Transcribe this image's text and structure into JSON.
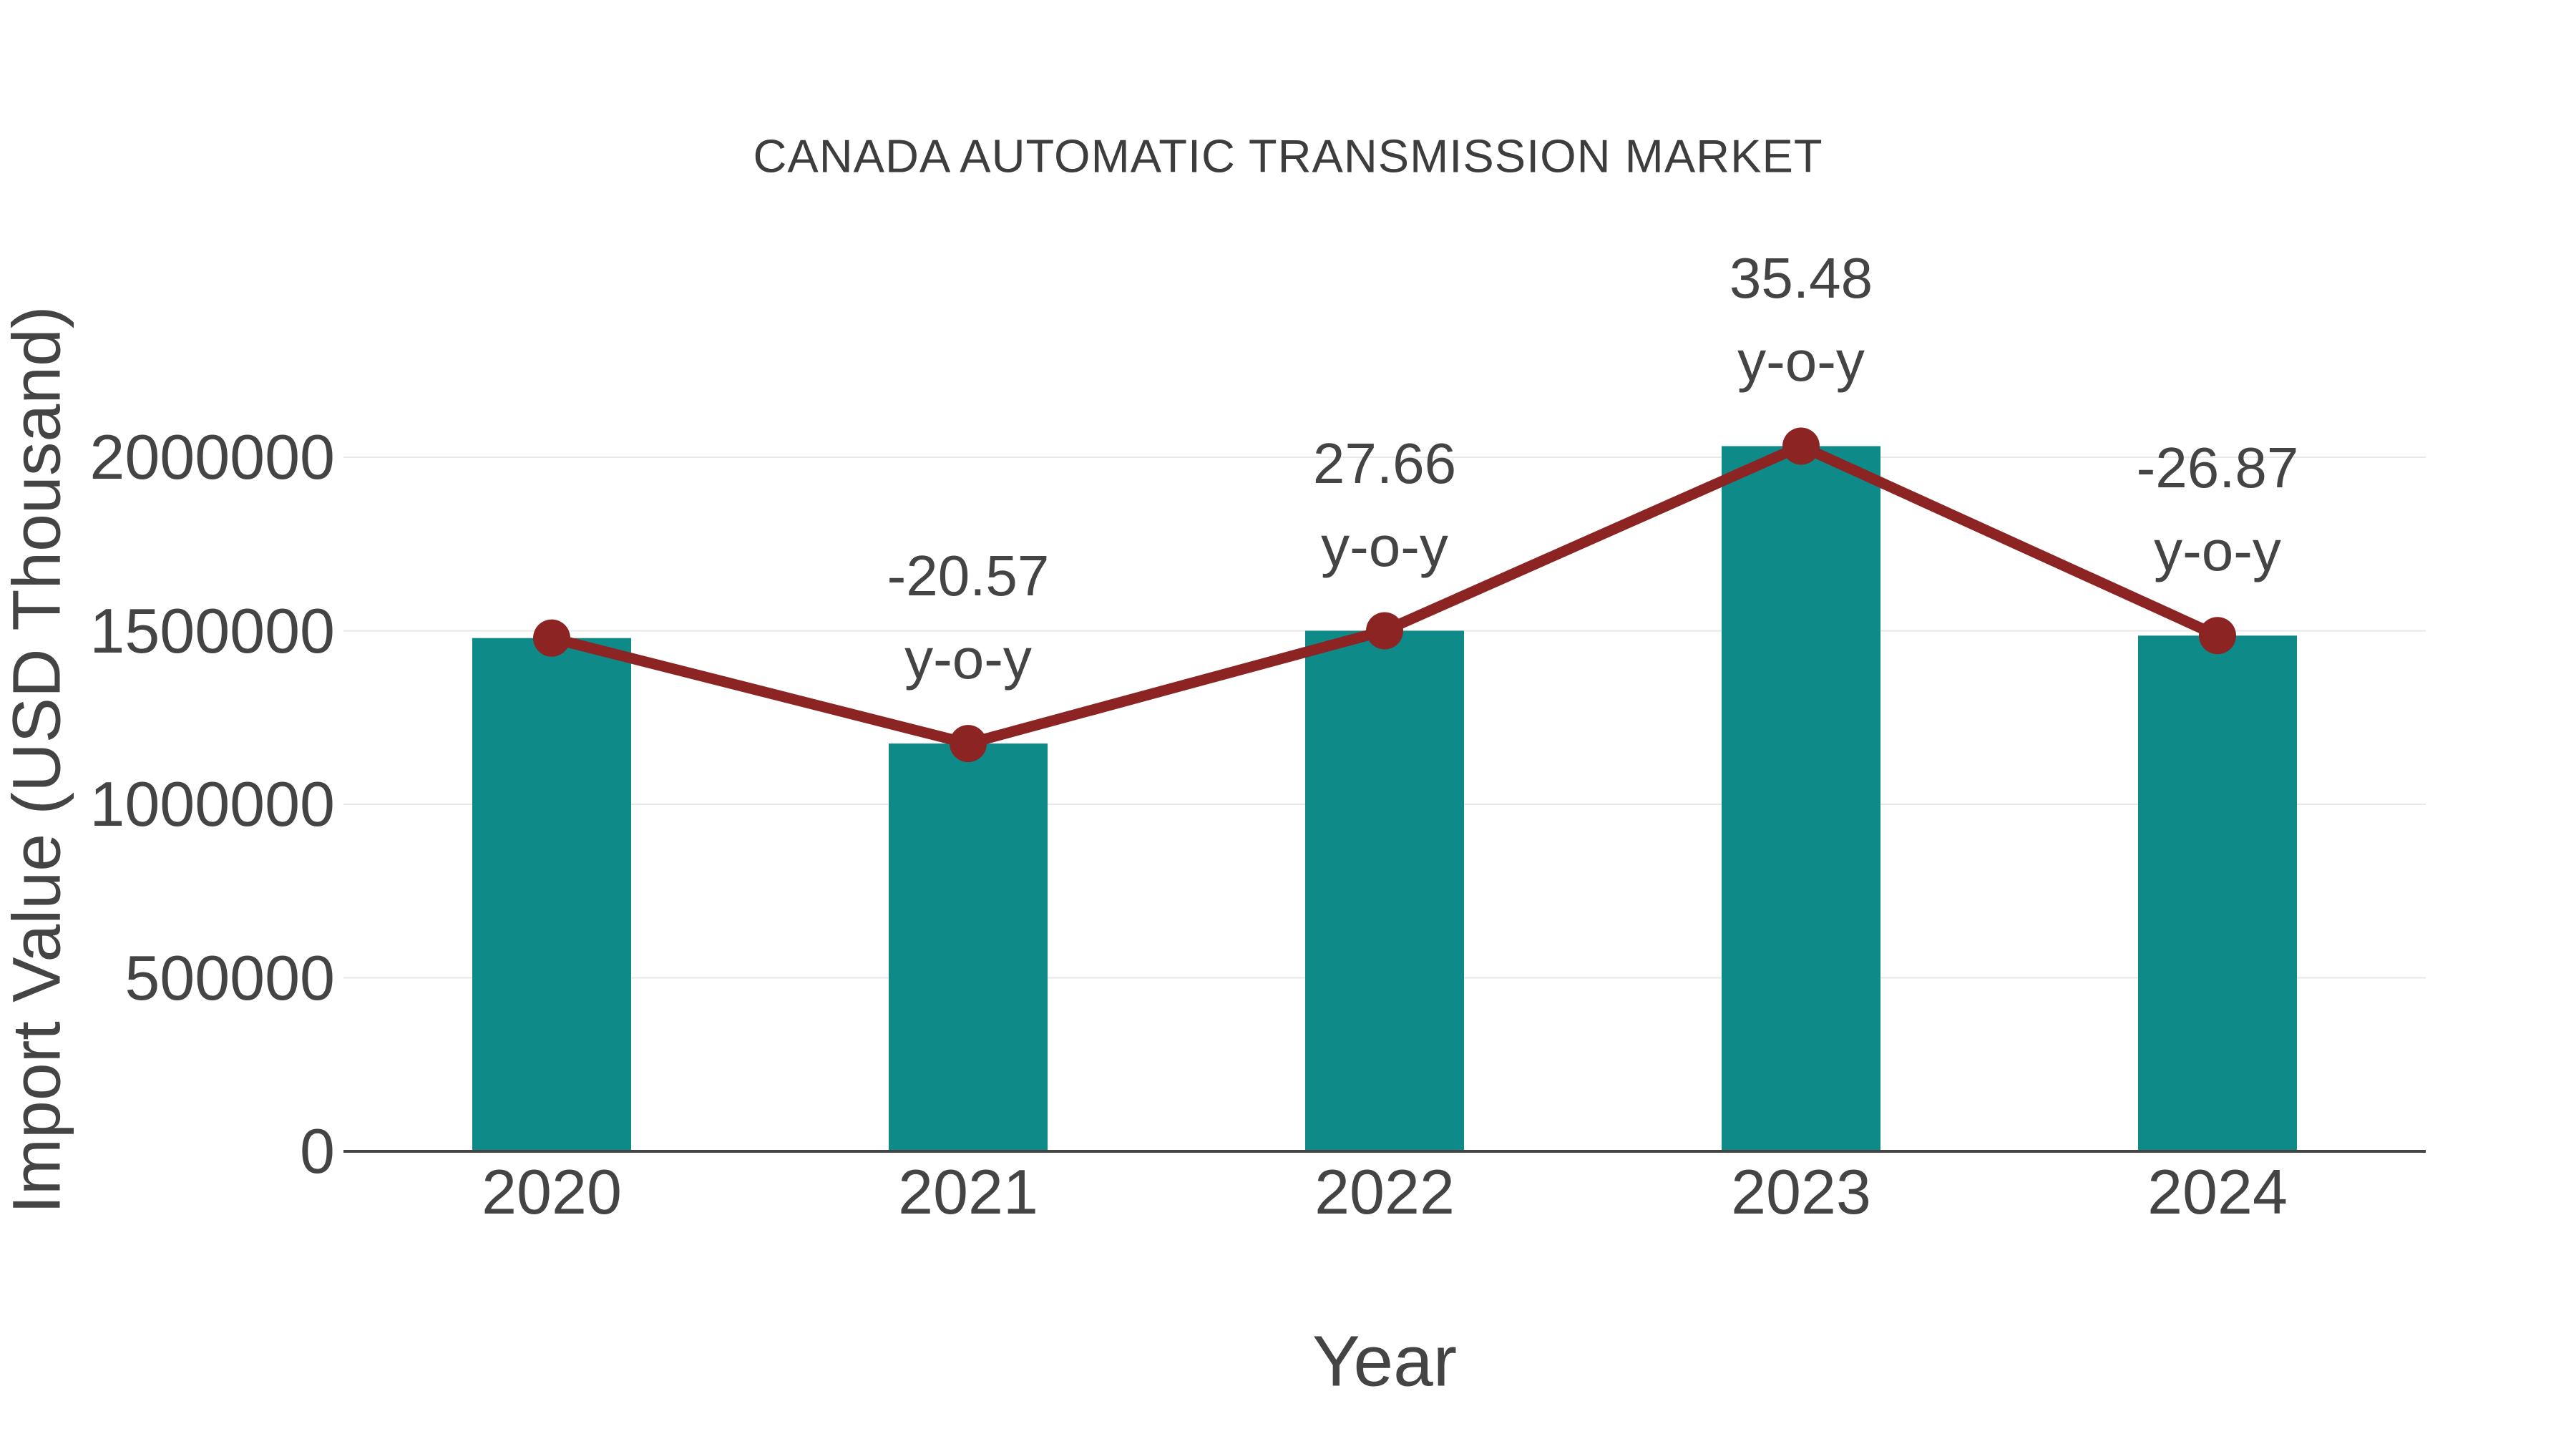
{
  "chart_data": {
    "type": "bar",
    "title": "CANADA AUTOMATIC TRANSMISSION MARKET",
    "xlabel": "Year",
    "ylabel": "Import Value (USD Thousand)",
    "categories": [
      "2020",
      "2021",
      "2022",
      "2023",
      "2024"
    ],
    "series": [
      {
        "name": "Import Value bars",
        "type": "bar",
        "values": [
          1479000,
          1175000,
          1500000,
          2032000,
          1486000
        ]
      },
      {
        "name": "Import Value trend line",
        "type": "line",
        "values": [
          1479000,
          1175000,
          1500000,
          2032000,
          1486000
        ]
      }
    ],
    "annotations": [
      {
        "category": "2021",
        "value": "-20.57",
        "suffix": "y-o-y"
      },
      {
        "category": "2022",
        "value": "27.66",
        "suffix": "y-o-y"
      },
      {
        "category": "2023",
        "value": "35.48",
        "suffix": "y-o-y"
      },
      {
        "category": "2024",
        "value": "-26.87",
        "suffix": "y-o-y"
      }
    ],
    "yticks": [
      0,
      500000,
      1000000,
      1500000,
      2000000
    ],
    "ytick_labels": [
      "0",
      "500000",
      "1000000",
      "1500000",
      "2000000"
    ],
    "ylim": [
      0,
      2150000
    ],
    "grid": true,
    "legend": false
  },
  "colors": {
    "bar": "#0e8a88",
    "line": "#8b2423",
    "point": "#8b2423",
    "text": "#444444",
    "title_text": "#3d3d3d",
    "grid": "#e8e8e8",
    "axis": "#444444",
    "background": "#ffffff"
  }
}
